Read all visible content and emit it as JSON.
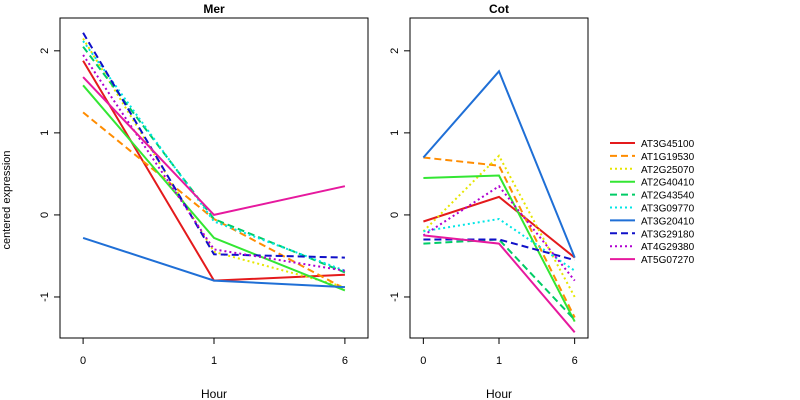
{
  "chart_data": {
    "type": "line",
    "ylabel": "centered expression",
    "xlabel": "Hour",
    "x": [
      "0",
      "1",
      "6"
    ],
    "ylim": [
      -1.5,
      2.4
    ],
    "y_ticks": [
      -1,
      0,
      1,
      2
    ],
    "legend_placement": "right",
    "panels": [
      {
        "title": "Mer",
        "series": [
          {
            "name": "AT3G45100",
            "values": [
              1.88,
              -0.8,
              -0.73
            ]
          },
          {
            "name": "AT1G19530",
            "values": [
              1.25,
              -0.05,
              -0.9
            ]
          },
          {
            "name": "AT2G25070",
            "values": [
              2.15,
              -0.45,
              -0.88
            ]
          },
          {
            "name": "AT2G40410",
            "values": [
              1.58,
              -0.28,
              -0.92
            ]
          },
          {
            "name": "AT2G43540",
            "values": [
              2.05,
              -0.05,
              -0.7
            ]
          },
          {
            "name": "AT3G09770",
            "values": [
              2.12,
              -0.08,
              -0.68
            ]
          },
          {
            "name": "AT3G20410",
            "values": [
              -0.28,
              -0.8,
              -0.88
            ]
          },
          {
            "name": "AT3G29180",
            "values": [
              2.22,
              -0.48,
              -0.52
            ]
          },
          {
            "name": "AT4G29380",
            "values": [
              1.95,
              -0.42,
              -0.68
            ]
          },
          {
            "name": "AT5G07270",
            "values": [
              1.68,
              0.0,
              0.35
            ]
          }
        ]
      },
      {
        "title": "Cot",
        "series": [
          {
            "name": "AT3G45100",
            "values": [
              -0.08,
              0.22,
              -0.52
            ]
          },
          {
            "name": "AT1G19530",
            "values": [
              0.7,
              0.6,
              -1.25
            ]
          },
          {
            "name": "AT2G25070",
            "values": [
              -0.2,
              0.72,
              -1.0
            ]
          },
          {
            "name": "AT2G40410",
            "values": [
              0.45,
              0.48,
              -1.3
            ]
          },
          {
            "name": "AT2G43540",
            "values": [
              -0.35,
              -0.3,
              -1.28
            ]
          },
          {
            "name": "AT3G09770",
            "values": [
              -0.2,
              -0.05,
              -0.68
            ]
          },
          {
            "name": "AT3G20410",
            "values": [
              0.7,
              1.75,
              -0.52
            ]
          },
          {
            "name": "AT3G29180",
            "values": [
              -0.3,
              -0.3,
              -0.55
            ]
          },
          {
            "name": "AT4G29380",
            "values": [
              -0.25,
              0.35,
              -0.8
            ]
          },
          {
            "name": "AT5G07270",
            "values": [
              -0.25,
              -0.35,
              -1.43
            ]
          }
        ]
      }
    ],
    "legend": [
      {
        "name": "AT3G45100",
        "color": "#e41a1c",
        "dash": "solid"
      },
      {
        "name": "AT1G19530",
        "color": "#ff8c00",
        "dash": "dashed"
      },
      {
        "name": "AT2G25070",
        "color": "#e6e600",
        "dash": "dotted"
      },
      {
        "name": "AT2G40410",
        "color": "#33e633",
        "dash": "solid"
      },
      {
        "name": "AT2G43540",
        "color": "#00cc66",
        "dash": "dashed"
      },
      {
        "name": "AT3G09770",
        "color": "#00e6e6",
        "dash": "dotted"
      },
      {
        "name": "AT3G20410",
        "color": "#1f6fd6",
        "dash": "solid"
      },
      {
        "name": "AT3G29180",
        "color": "#1010c8",
        "dash": "dashed"
      },
      {
        "name": "AT4G29380",
        "color": "#b000d0",
        "dash": "dotted"
      },
      {
        "name": "AT5G07270",
        "color": "#e6199e",
        "dash": "solid"
      }
    ]
  }
}
